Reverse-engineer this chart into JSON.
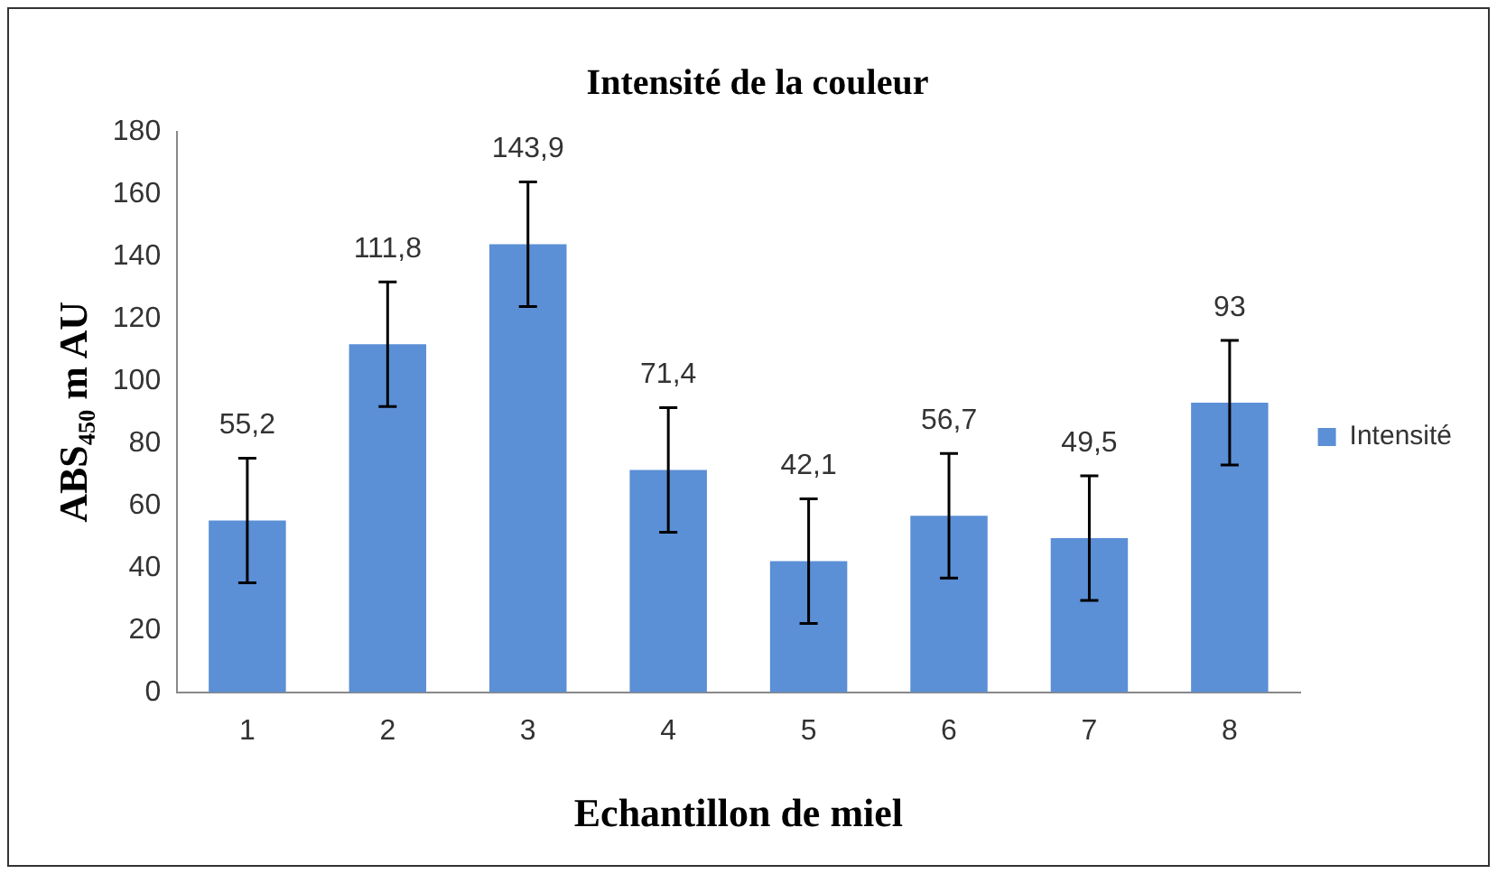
{
  "chart_data": {
    "type": "bar",
    "title": "Intensité de la couleur",
    "xlabel": "Echantillon de miel",
    "ylabel": "ABS₄₅₀ m AU",
    "categories": [
      "1",
      "2",
      "3",
      "4",
      "5",
      "6",
      "7",
      "8"
    ],
    "series": [
      {
        "name": "Intensité",
        "color": "#5b8fd6",
        "values": [
          55.2,
          111.8,
          143.9,
          71.4,
          42.1,
          56.7,
          49.5,
          93
        ],
        "errors": [
          20,
          20,
          20,
          20,
          20,
          20,
          20,
          20
        ],
        "value_labels": [
          "55,2",
          "111,8",
          "143,9",
          "71,4",
          "42,1",
          "56,7",
          "49,5",
          "93"
        ]
      }
    ],
    "ylim": [
      0,
      180
    ],
    "yticks": [
      0,
      20,
      40,
      60,
      80,
      100,
      120,
      140,
      160,
      180
    ],
    "grid": false,
    "legend": "right"
  }
}
